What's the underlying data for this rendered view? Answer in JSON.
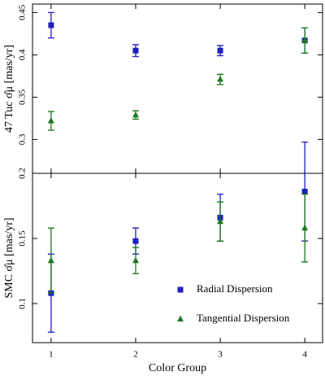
{
  "chart_data": [
    {
      "type": "scatter",
      "ylabel": "47 Tuc σ̂μ [mas/yr]",
      "x": [
        1,
        2,
        3,
        4
      ],
      "xlim": [
        0.78,
        4.21
      ],
      "xticks": [
        1,
        2,
        3,
        4
      ],
      "show_xticklabels": false,
      "ylim": [
        0.26,
        0.46
      ],
      "yticks": [
        0.3,
        0.35,
        0.4,
        0.45
      ],
      "series": [
        {
          "color": "#1f1fbf",
          "marker": "square",
          "values": [
            0.435,
            0.405,
            0.405,
            0.417
          ],
          "errors": [
            0.015,
            0.007,
            0.006,
            0.015
          ]
        },
        {
          "color": "#1e7a1e",
          "marker": "triangle",
          "values": [
            0.322,
            0.329,
            0.371,
            0.417
          ],
          "errors": [
            0.011,
            0.005,
            0.006,
            0.015
          ]
        }
      ]
    },
    {
      "type": "scatter",
      "ylabel": "SMC σ̂μ [mas/yr]",
      "xlabel": "Color Group",
      "x": [
        1,
        2,
        3,
        4
      ],
      "xlim": [
        0.78,
        4.21
      ],
      "xticks": [
        1,
        2,
        3,
        4
      ],
      "show_xticklabels": true,
      "ylim": [
        0.07,
        0.2
      ],
      "yticks": [
        0.1,
        0.15,
        0.2
      ],
      "legend": "lower right",
      "series": [
        {
          "name": "Radial Dispersion",
          "color": "#1f1fbf",
          "marker": "square",
          "values": [
            0.108,
            0.148,
            0.166,
            0.186
          ],
          "errors": [
            0.03,
            0.01,
            0.018,
            0.038
          ]
        },
        {
          "name": "Tangential Dispersion",
          "color": "#1e7a1e",
          "marker": "triangle",
          "values": [
            0.133,
            0.133,
            0.163,
            0.158
          ],
          "errors": [
            0.025,
            0.01,
            0.015,
            0.026
          ]
        }
      ]
    }
  ]
}
